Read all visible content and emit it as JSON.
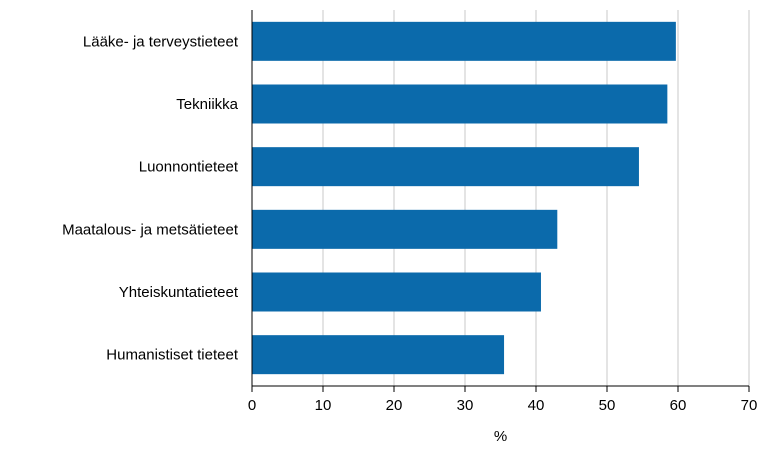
{
  "chart_data": {
    "type": "bar",
    "orientation": "horizontal",
    "categories": [
      "Lääke- ja terveystieteet",
      "Tekniikka",
      "Luonnontieteet",
      "Maatalous- ja metsätieteet",
      "Yhteiskuntatieteet",
      "Humanistiset tieteet"
    ],
    "values": [
      59.7,
      58.5,
      54.5,
      43.0,
      40.7,
      35.5
    ],
    "xlabel": "%",
    "ylabel": "",
    "title": "",
    "xlim": [
      0,
      70
    ],
    "xticks": [
      0,
      10,
      20,
      30,
      40,
      50,
      60,
      70
    ],
    "grid": "vertical",
    "legend": "none",
    "bar_color": "#0b6aab",
    "grid_color": "#c8c8c8"
  }
}
